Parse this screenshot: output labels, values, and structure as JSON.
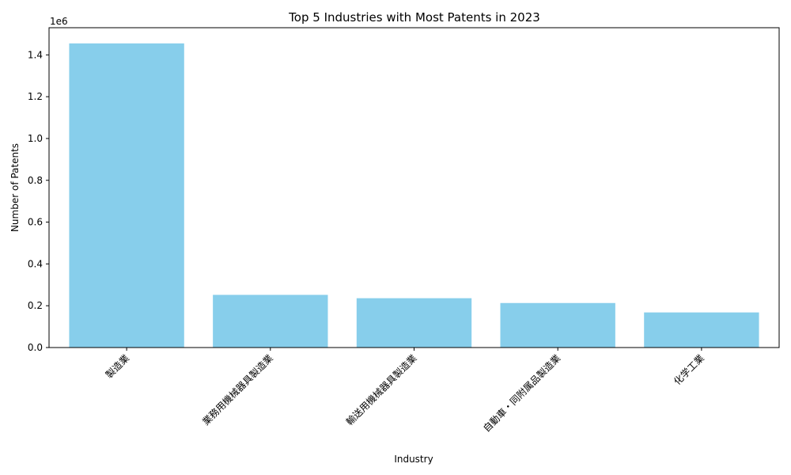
{
  "chart_data": {
    "type": "bar",
    "title": "Top 5 Industries with Most Patents in 2023",
    "xlabel": "Industry",
    "ylabel": "Number of Patents",
    "y_offset_label": "1e6",
    "categories": [
      "製造業",
      "業務用機械器具製造業",
      "輸送用機械器具製造業",
      "自動車・同附属品製造業",
      "化学工業"
    ],
    "values": [
      1455000,
      252000,
      236000,
      213000,
      168000
    ],
    "ylim": [
      0,
      1530000
    ],
    "yticks": [
      0,
      200000,
      400000,
      600000,
      800000,
      1000000,
      1200000,
      1400000
    ],
    "ytick_labels": [
      "0.0",
      "0.2",
      "0.4",
      "0.6",
      "0.8",
      "1.0",
      "1.2",
      "1.4"
    ],
    "bar_color": "#87ceeb",
    "grid": false,
    "legend": "none"
  }
}
